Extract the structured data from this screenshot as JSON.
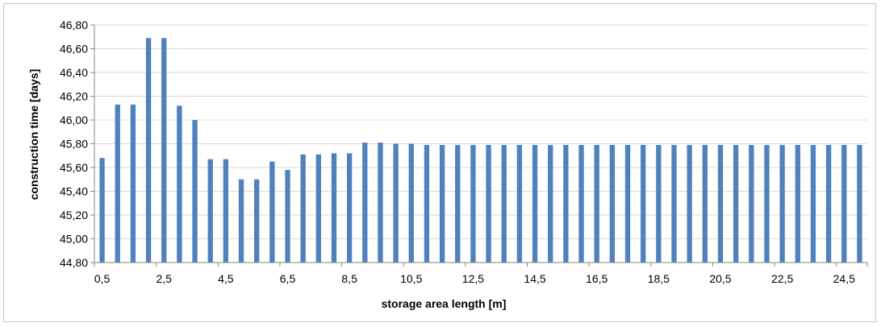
{
  "chart_data": {
    "type": "bar",
    "title": "",
    "xlabel": "storage area length [m]",
    "ylabel": "construction time [days]",
    "ylim": [
      44.8,
      46.8
    ],
    "yticks": [
      "44,80",
      "45,00",
      "45,20",
      "45,40",
      "45,60",
      "45,80",
      "46,00",
      "46,20",
      "46,40",
      "46,60",
      "46,80"
    ],
    "xtick_labels": [
      "0,5",
      "2,5",
      "4,5",
      "6,5",
      "8,5",
      "10,5",
      "12,5",
      "14,5",
      "16,5",
      "18,5",
      "20,5",
      "22,5",
      "24,5"
    ],
    "grid": "horizontal",
    "legend": "none",
    "bar_color": "#4f81bd",
    "categories": [
      "0,5",
      "1",
      "1,5",
      "2",
      "2,5",
      "3",
      "3,5",
      "4",
      "4,5",
      "5",
      "5,5",
      "6",
      "6,5",
      "7",
      "7,5",
      "8",
      "8,5",
      "9",
      "9,5",
      "10",
      "10,5",
      "11",
      "11,5",
      "12",
      "12,5",
      "13",
      "13,5",
      "14",
      "14,5",
      "15",
      "15,5",
      "16",
      "16,5",
      "17",
      "17,5",
      "18",
      "18,5",
      "19",
      "19,5",
      "20",
      "20,5",
      "21",
      "21,5",
      "22",
      "22,5",
      "23",
      "23,5",
      "24",
      "24,5",
      "25"
    ],
    "values": [
      45.68,
      46.13,
      46.13,
      46.69,
      46.69,
      46.12,
      46.0,
      45.67,
      45.67,
      45.5,
      45.5,
      45.65,
      45.58,
      45.71,
      45.71,
      45.72,
      45.72,
      45.81,
      45.81,
      45.8,
      45.8,
      45.79,
      45.79,
      45.79,
      45.79,
      45.79,
      45.79,
      45.79,
      45.79,
      45.79,
      45.79,
      45.79,
      45.79,
      45.79,
      45.79,
      45.79,
      45.79,
      45.79,
      45.79,
      45.79,
      45.79,
      45.79,
      45.79,
      45.79,
      45.79,
      45.79,
      45.79,
      45.79,
      45.79,
      45.79
    ]
  }
}
